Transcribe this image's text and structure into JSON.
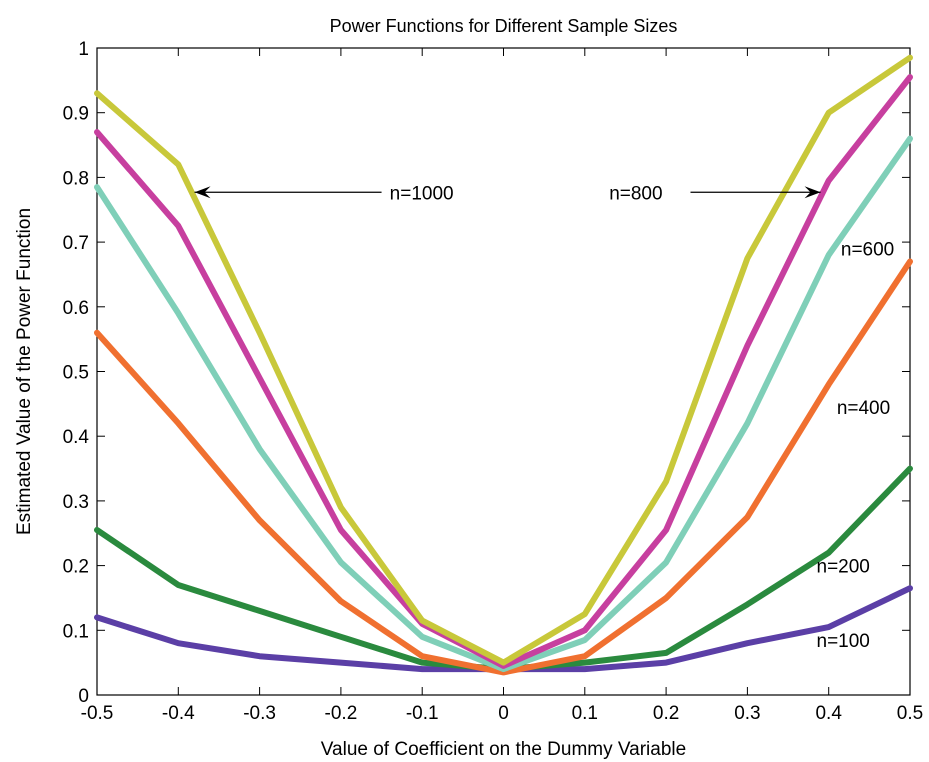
{
  "chart_data": {
    "type": "line",
    "title": "Power Functions for Different Sample Sizes",
    "xlabel": "Value of Coefficient on the Dummy Variable",
    "ylabel": "Estimated Value of the Power Function",
    "xlim": [
      -0.5,
      0.5
    ],
    "ylim": [
      0,
      1
    ],
    "grid": false,
    "x": [
      -0.5,
      -0.4,
      -0.3,
      -0.2,
      -0.1,
      0,
      0.1,
      0.2,
      0.3,
      0.4,
      0.5
    ],
    "x_tick_labels": [
      "-0.5",
      "-0.4",
      "-0.3",
      "-0.2",
      "-0.1",
      "0",
      "0.1",
      "0.2",
      "0.3",
      "0.4",
      "0.5"
    ],
    "y_tick_labels": [
      "0",
      "0.1",
      "0.2",
      "0.3",
      "0.4",
      "0.5",
      "0.6",
      "0.7",
      "0.8",
      "0.9",
      "1"
    ],
    "y_ticks": [
      0,
      0.1,
      0.2,
      0.3,
      0.4,
      0.5,
      0.6,
      0.7,
      0.8,
      0.9,
      1
    ],
    "series": [
      {
        "name": "n=100",
        "color": "#5b3fa6",
        "values": [
          0.12,
          0.08,
          0.06,
          0.05,
          0.04,
          0.04,
          0.04,
          0.05,
          0.08,
          0.105,
          0.165
        ]
      },
      {
        "name": "n=200",
        "color": "#2a8a3e",
        "values": [
          0.255,
          0.17,
          0.13,
          0.09,
          0.05,
          0.04,
          0.05,
          0.065,
          0.14,
          0.22,
          0.35
        ]
      },
      {
        "name": "n=400",
        "color": "#f07030",
        "values": [
          0.56,
          0.42,
          0.27,
          0.145,
          0.06,
          0.035,
          0.06,
          0.15,
          0.275,
          0.48,
          0.67
        ]
      },
      {
        "name": "n=600",
        "color": "#7fcfb8",
        "values": [
          0.785,
          0.59,
          0.38,
          0.205,
          0.09,
          0.04,
          0.085,
          0.205,
          0.42,
          0.68,
          0.86
        ]
      },
      {
        "name": "n=800",
        "color": "#c73f9f",
        "values": [
          0.87,
          0.725,
          0.49,
          0.255,
          0.11,
          0.045,
          0.1,
          0.255,
          0.54,
          0.795,
          0.955
        ]
      },
      {
        "name": "n=1000",
        "color": "#c8c83a",
        "values": [
          0.93,
          0.82,
          0.56,
          0.29,
          0.115,
          0.05,
          0.125,
          0.33,
          0.675,
          0.9,
          0.985
        ]
      }
    ],
    "annotations": {
      "n1000": {
        "text": "n=1000",
        "arrow_from": [
          -0.15,
          0.777
        ],
        "arrow_to": [
          -0.38,
          0.777
        ],
        "text_at": [
          -0.14,
          0.777
        ]
      },
      "n800": {
        "text": "n=800",
        "arrow_from": [
          0.23,
          0.777
        ],
        "arrow_to": [
          0.39,
          0.777
        ],
        "text_at": [
          0.13,
          0.777
        ]
      },
      "n600": {
        "text": "n=600",
        "text_at": [
          0.415,
          0.69
        ]
      },
      "n400": {
        "text": "n=400",
        "text_at": [
          0.41,
          0.445
        ]
      },
      "n200": {
        "text": "n=200",
        "text_at": [
          0.385,
          0.2
        ]
      },
      "n100": {
        "text": "n=100",
        "text_at": [
          0.385,
          0.085
        ]
      }
    }
  }
}
